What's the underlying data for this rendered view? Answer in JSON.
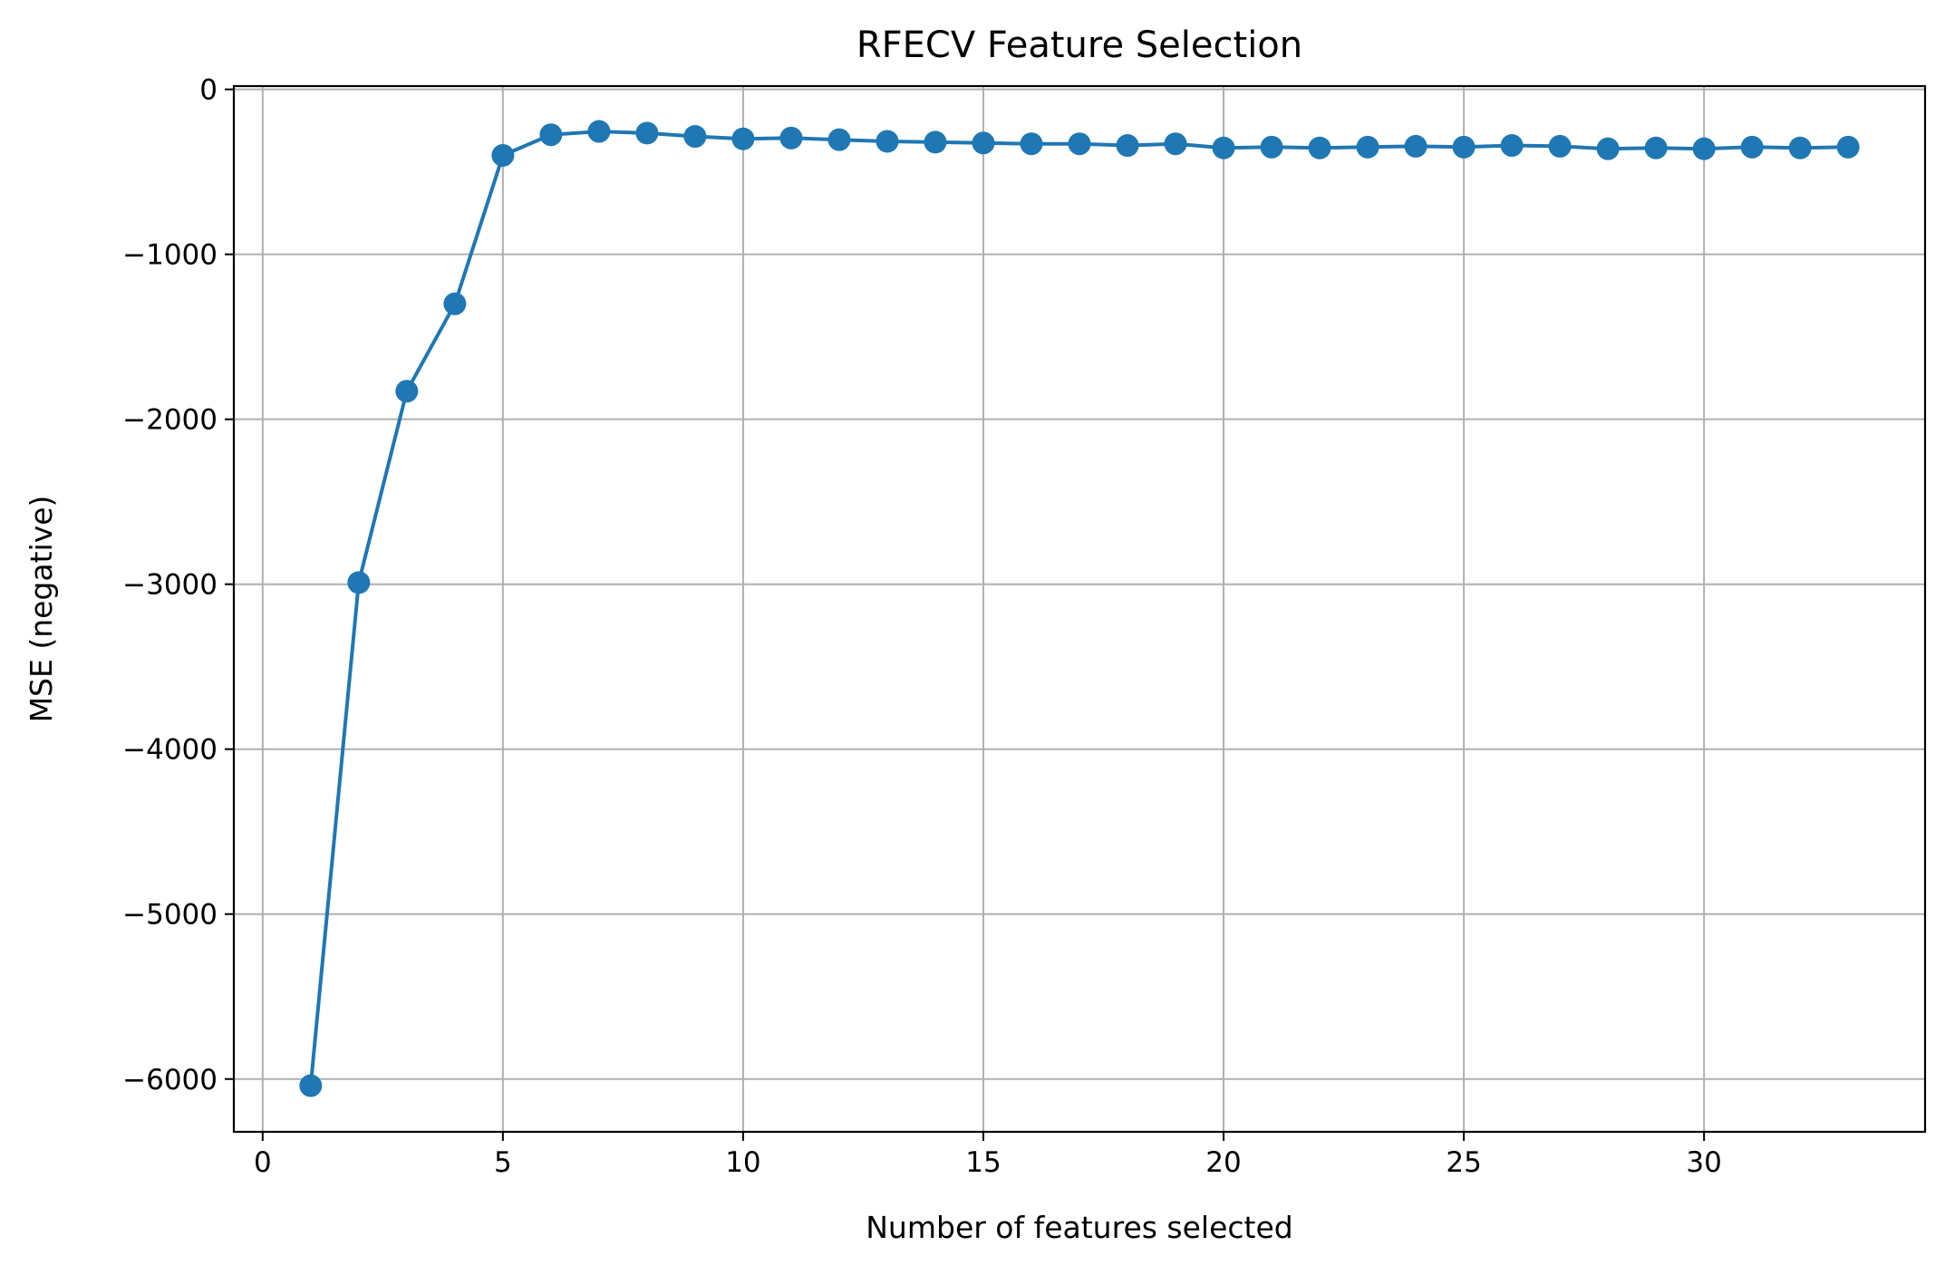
{
  "chart_data": {
    "type": "line",
    "title": "RFECV Feature Selection",
    "xlabel": "Number of features selected",
    "ylabel": "MSE (negative)",
    "xlim": [
      -0.6,
      34.6
    ],
    "ylim": [
      -6320,
      20
    ],
    "xticks": [
      0,
      5,
      10,
      15,
      20,
      25,
      30
    ],
    "xtick_labels": [
      "0",
      "5",
      "10",
      "15",
      "20",
      "25",
      "30"
    ],
    "yticks": [
      0,
      -1000,
      -2000,
      -3000,
      -4000,
      -5000,
      -6000
    ],
    "ytick_labels": [
      "0",
      "−1000",
      "−2000",
      "−3000",
      "−4000",
      "−5000",
      "−6000"
    ],
    "grid": true,
    "marker": "circle",
    "series": [
      {
        "color": "#1f77b4",
        "x": [
          1,
          2,
          3,
          4,
          5,
          6,
          7,
          8,
          9,
          10,
          11,
          12,
          13,
          14,
          15,
          16,
          17,
          18,
          19,
          20,
          21,
          22,
          23,
          24,
          25,
          26,
          27,
          28,
          29,
          30,
          31,
          32,
          33
        ],
        "y": [
          -6040,
          -2990,
          -1830,
          -1300,
          -400,
          -275,
          -255,
          -265,
          -285,
          -300,
          -295,
          -305,
          -315,
          -320,
          -325,
          -330,
          -330,
          -340,
          -330,
          -355,
          -350,
          -355,
          -350,
          -345,
          -350,
          -340,
          -345,
          -360,
          -355,
          -360,
          -350,
          -355,
          -350
        ]
      }
    ]
  }
}
